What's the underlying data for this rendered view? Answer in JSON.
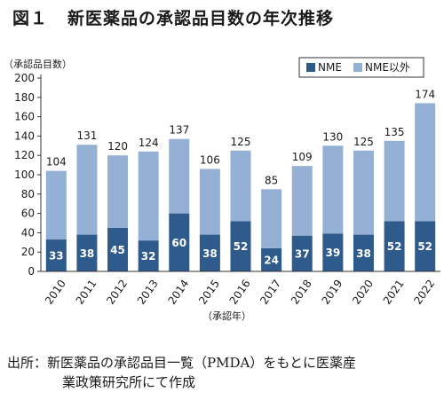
{
  "title": {
    "figure_no": "図１",
    "text": "新医薬品の承認品目数の年次推移"
  },
  "source": {
    "label": "出所：",
    "line1": "新医薬品の承認品目一覧（PMDA）をもとに医薬産",
    "line2": "業政策研究所にて作成"
  },
  "chart_data": {
    "type": "bar",
    "stacked": true,
    "categories": [
      "2010",
      "2011",
      "2012",
      "2013",
      "2014",
      "2015",
      "2016",
      "2017",
      "2018",
      "2019",
      "2020",
      "2021",
      "2022"
    ],
    "series": [
      {
        "name": "NME",
        "color": "#2e5a8c",
        "values": [
          33,
          38,
          45,
          32,
          60,
          38,
          52,
          24,
          37,
          39,
          38,
          52,
          52
        ]
      },
      {
        "name": "NME以外",
        "color": "#94b0d4",
        "values": [
          71,
          93,
          75,
          92,
          77,
          68,
          73,
          61,
          72,
          91,
          87,
          83,
          122
        ]
      }
    ],
    "totals": [
      104,
      131,
      120,
      124,
      137,
      106,
      125,
      85,
      109,
      130,
      125,
      135,
      174
    ],
    "ylabel": "（承認品目数）",
    "xlabel": "（承認年）",
    "ylim": [
      0,
      200
    ],
    "yticks": [
      0,
      20,
      40,
      60,
      80,
      100,
      120,
      140,
      160,
      180,
      200
    ],
    "legend": "top-right",
    "grid": false
  }
}
